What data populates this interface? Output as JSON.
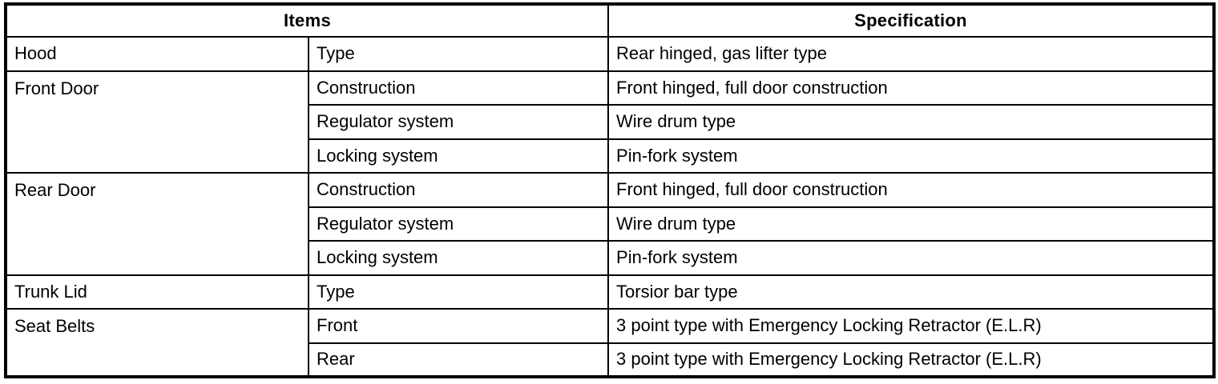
{
  "colors": {
    "border": "#000000",
    "background": "#ffffff",
    "text": "#000000"
  },
  "table": {
    "headers": {
      "items": "Items",
      "specification": "Specification"
    },
    "rows": [
      {
        "item": "Hood",
        "item_rowspan": 1,
        "sub": "Type",
        "spec": "Rear hinged, gas lifter type"
      },
      {
        "item": "Front Door",
        "item_rowspan": 3,
        "sub": "Construction",
        "spec": "Front hinged, full door construction"
      },
      {
        "sub": "Regulator system",
        "spec": "Wire drum type"
      },
      {
        "sub": "Locking system",
        "spec": "Pin-fork system"
      },
      {
        "item": "Rear Door",
        "item_rowspan": 3,
        "sub": "Construction",
        "spec": "Front hinged, full door construction"
      },
      {
        "sub": "Regulator system",
        "spec": "Wire drum type"
      },
      {
        "sub": "Locking system",
        "spec": "Pin-fork system"
      },
      {
        "item": "Trunk Lid",
        "item_rowspan": 1,
        "sub": "Type",
        "spec": "Torsior bar type"
      },
      {
        "item": "Seat Belts",
        "item_rowspan": 2,
        "sub": "Front",
        "spec": "3 point type with Emergency Locking Retractor (E.L.R)"
      },
      {
        "sub": "Rear",
        "spec": "3 point type with Emergency Locking Retractor (E.L.R)"
      }
    ]
  }
}
